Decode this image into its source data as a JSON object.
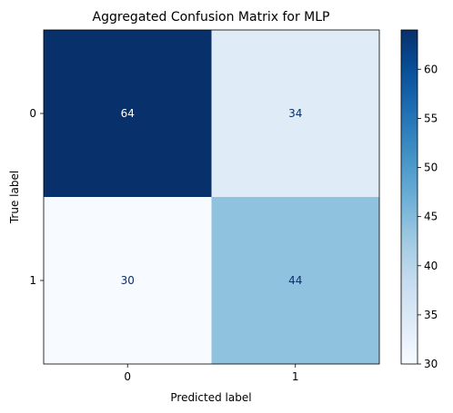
{
  "chart_data": {
    "type": "heatmap",
    "title": "Aggregated Confusion Matrix for MLP",
    "xlabel": "Predicted label",
    "ylabel": "True label",
    "x_categories": [
      "0",
      "1"
    ],
    "y_categories": [
      "0",
      "1"
    ],
    "matrix": [
      [
        64,
        34
      ],
      [
        30,
        44
      ]
    ],
    "colormap": "Blues",
    "colorbar": {
      "vmin": 30,
      "vmax": 64,
      "ticks": [
        30,
        35,
        40,
        45,
        50,
        55,
        60
      ]
    },
    "grid": false
  }
}
